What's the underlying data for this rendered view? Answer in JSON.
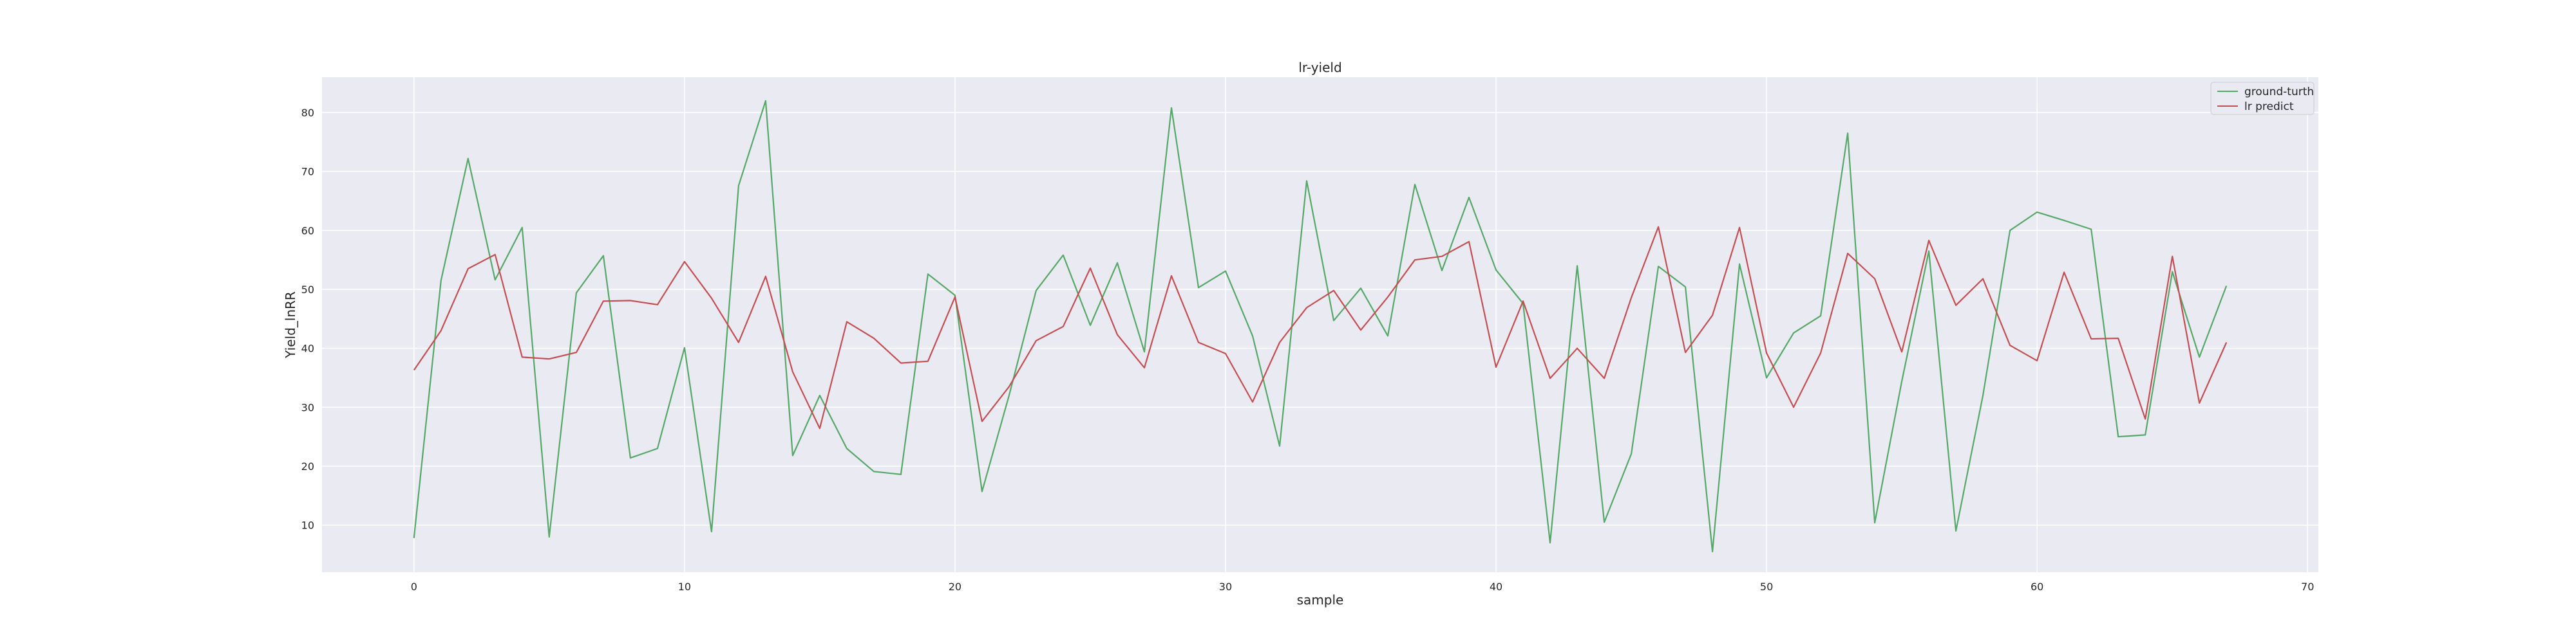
{
  "chart_data": {
    "type": "line",
    "title": "lr-yield",
    "xlabel": "sample",
    "ylabel": "Yield_lnRR",
    "xlim": [
      -3.4,
      70.4
    ],
    "ylim": [
      2.0,
      86.0
    ],
    "xticks": [
      0,
      10,
      20,
      30,
      40,
      50,
      60,
      70
    ],
    "yticks": [
      10,
      20,
      30,
      40,
      50,
      60,
      70,
      80
    ],
    "grid": true,
    "legend_position": "top-right",
    "colors": {
      "background": "#eaeaf2",
      "grid": "#ffffff",
      "ground": "#55a868",
      "predict": "#c44e52"
    },
    "x": [
      0,
      1,
      2,
      3,
      4,
      5,
      6,
      7,
      8,
      9,
      10,
      11,
      12,
      13,
      14,
      15,
      16,
      17,
      18,
      19,
      20,
      21,
      22,
      23,
      24,
      25,
      26,
      27,
      28,
      29,
      30,
      31,
      32,
      33,
      34,
      35,
      36,
      37,
      38,
      39,
      40,
      41,
      42,
      43,
      44,
      45,
      46,
      47,
      48,
      49,
      50,
      51,
      52,
      53,
      54,
      55,
      56,
      57,
      58,
      59,
      60,
      61,
      62,
      63,
      64,
      65,
      66,
      67
    ],
    "series": [
      {
        "name": "ground-turth",
        "color": "#55a868",
        "values": [
          7.8,
          51.5,
          72.2,
          51.6,
          60.5,
          8.0,
          49.4,
          55.7,
          21.4,
          23.0,
          40.1,
          8.9,
          67.6,
          82.0,
          21.8,
          32.0,
          23.0,
          19.1,
          18.6,
          52.6,
          49.0,
          15.7,
          32.0,
          49.8,
          55.8,
          43.9,
          54.5,
          39.4,
          80.8,
          50.3,
          53.1,
          42.1,
          23.4,
          68.4,
          44.7,
          50.2,
          42.1,
          67.8,
          53.2,
          65.6,
          53.3,
          47.6,
          7.0,
          54.0,
          10.5,
          22.1,
          53.9,
          50.4,
          5.5,
          54.3,
          35.0,
          42.6,
          45.5,
          76.5,
          10.4,
          34.4,
          56.5,
          9.0,
          32.0,
          60.0,
          63.1,
          61.7,
          60.2,
          25.0,
          25.3,
          53.0,
          38.5,
          50.6
        ]
      },
      {
        "name": "lr predict",
        "color": "#c44e52",
        "values": [
          36.3,
          43.0,
          53.5,
          55.9,
          38.5,
          38.2,
          39.3,
          48.0,
          48.1,
          47.4,
          54.7,
          48.5,
          41.0,
          52.2,
          36.0,
          26.4,
          44.5,
          41.7,
          37.5,
          37.8,
          48.7,
          27.6,
          33.5,
          41.3,
          43.7,
          53.6,
          42.3,
          36.7,
          52.3,
          41.0,
          39.1,
          30.9,
          41.0,
          46.9,
          49.8,
          43.1,
          48.7,
          55.0,
          55.6,
          58.1,
          36.8,
          48.0,
          34.9,
          40.0,
          34.9,
          48.6,
          60.6,
          39.3,
          45.6,
          60.5,
          39.2,
          30.0,
          39.2,
          56.1,
          51.8,
          39.4,
          58.3,
          47.3,
          51.8,
          40.5,
          37.9,
          52.9,
          41.6,
          41.7,
          28.0,
          55.6,
          30.7,
          41.0
        ]
      }
    ]
  }
}
